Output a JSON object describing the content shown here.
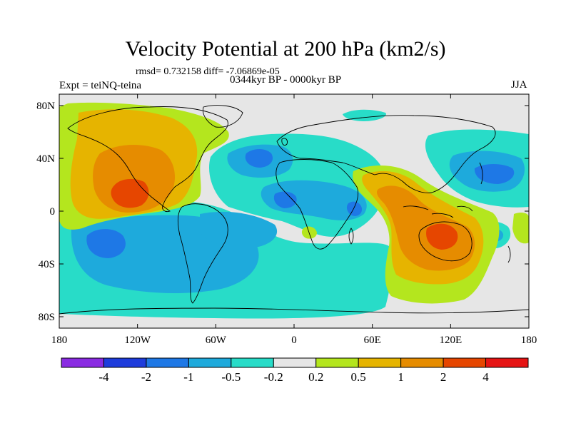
{
  "figure": {
    "title": "Velocity Potential at 200 hPa (km2/s)",
    "stats": "rmsd= 0.732158 diff= -7.06869e-05",
    "experiment": "Expt = teiNQ-teina",
    "period": "0344kyr BP - 0000kyr BP",
    "season": "JJA"
  },
  "axes": {
    "y_ticks": [
      "80N",
      "40N",
      "0",
      "40S",
      "80S"
    ],
    "x_ticks": [
      "180",
      "120W",
      "60W",
      "0",
      "60E",
      "120E",
      "180"
    ]
  },
  "colorbar": {
    "labels": [
      "-4",
      "-2",
      "-1",
      "-0.5",
      "-0.2",
      "0.2",
      "0.5",
      "1",
      "2",
      "4"
    ],
    "colors": [
      "#8a2be2",
      "#1e3cdc",
      "#1e78e6",
      "#1eaadc",
      "#28dcc8",
      "#e6e6e6",
      "#b4e61e",
      "#e6b400",
      "#e68c00",
      "#e64600",
      "#e61414"
    ]
  },
  "map_colors": {
    "land_outline": "#000000",
    "neutral": "#e6e6e6"
  }
}
